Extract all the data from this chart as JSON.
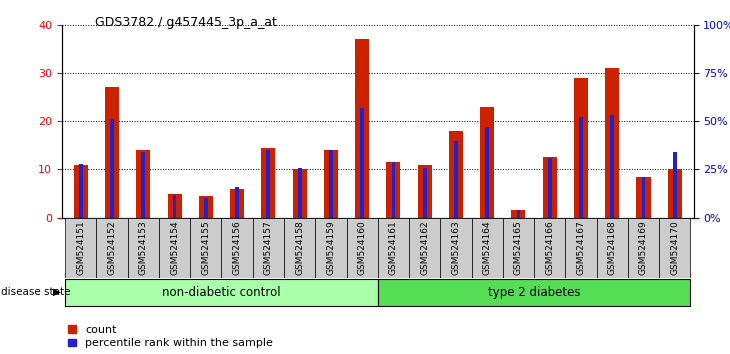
{
  "title": "GDS3782 / g457445_3p_a_at",
  "samples": [
    "GSM524151",
    "GSM524152",
    "GSM524153",
    "GSM524154",
    "GSM524155",
    "GSM524156",
    "GSM524157",
    "GSM524158",
    "GSM524159",
    "GSM524160",
    "GSM524161",
    "GSM524162",
    "GSM524163",
    "GSM524164",
    "GSM524165",
    "GSM524166",
    "GSM524167",
    "GSM524168",
    "GSM524169",
    "GSM524170"
  ],
  "counts": [
    11,
    27,
    14,
    5,
    4.5,
    6,
    14.5,
    10,
    14,
    37,
    11.5,
    11,
    18,
    23,
    1.5,
    12.5,
    29,
    31,
    8.5,
    10
  ],
  "percentiles": [
    28,
    51,
    34,
    12,
    10,
    16,
    35,
    26,
    35,
    57,
    29,
    26,
    40,
    47,
    4,
    31,
    52,
    53,
    21,
    34
  ],
  "groups": [
    {
      "label": "non-diabetic control",
      "start": 0,
      "end": 10,
      "color": "#aaffaa"
    },
    {
      "label": "type 2 diabetes",
      "start": 10,
      "end": 20,
      "color": "#55dd55"
    }
  ],
  "ylim_left": [
    0,
    40
  ],
  "ylim_right": [
    0,
    100
  ],
  "red_color": "#cc2200",
  "blue_color": "#2222cc",
  "grid_color": "black",
  "tick_bg_color": "#cccccc",
  "plot_bg": "white",
  "disease_state_label": "disease state",
  "legend_count": "count",
  "legend_pct": "percentile rank within the sample"
}
